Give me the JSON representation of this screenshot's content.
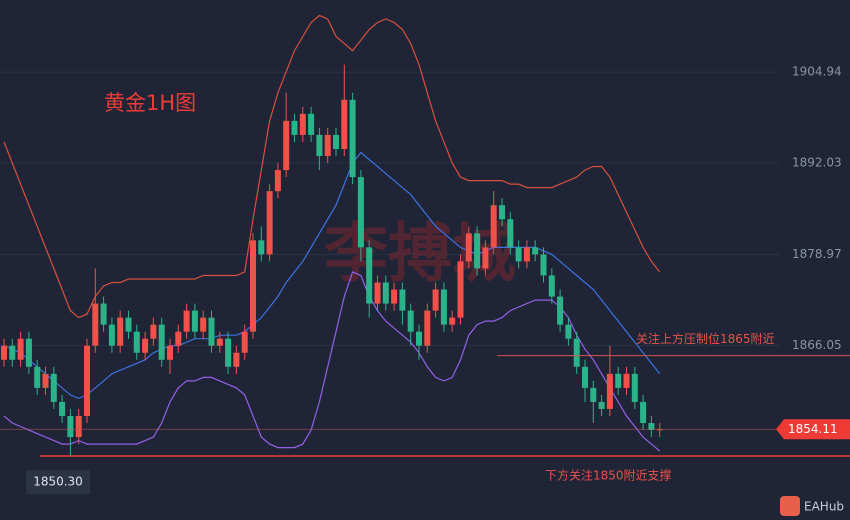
{
  "chart_data": {
    "type": "candlestick",
    "title": "黄金1H图",
    "watermark": "李搏城",
    "brand": "EAHub",
    "up_color": "#f0524a",
    "down_color": "#2bb38a",
    "ylim": [
      1841.2,
      1915.2
    ],
    "yticks": [
      1866.05,
      1878.97,
      1892.03,
      1904.94
    ],
    "grid": true,
    "open": [
      1864,
      1866,
      1864,
      1867,
      1863,
      1860,
      1862,
      1858,
      1856,
      1853,
      1856,
      1866,
      1872,
      1869,
      1866,
      1870,
      1868,
      1865,
      1867,
      1869,
      1864,
      1866,
      1868,
      1871,
      1868,
      1870,
      1866,
      1867,
      1863,
      1865,
      1868,
      1881,
      1879,
      1888,
      1891,
      1898,
      1896,
      1899,
      1896,
      1893,
      1896,
      1894,
      1901,
      1890,
      1880,
      1872,
      1875,
      1872,
      1874,
      1871,
      1868,
      1866,
      1871,
      1874,
      1869,
      1870,
      1878,
      1882,
      1877,
      1880,
      1886,
      1884,
      1880,
      1878,
      1880,
      1879,
      1876,
      1873,
      1869,
      1867,
      1863,
      1860,
      1858,
      1857,
      1862,
      1860,
      1862,
      1858,
      1855,
      1854
    ],
    "high": [
      1867,
      1867,
      1868,
      1868,
      1864,
      1863,
      1863,
      1859,
      1857,
      1857,
      1867,
      1877,
      1873,
      1870,
      1871,
      1871,
      1869,
      1868,
      1870,
      1870,
      1867,
      1869,
      1872,
      1872,
      1871,
      1871,
      1868,
      1868,
      1866,
      1869,
      1882,
      1883,
      1889,
      1892,
      1902,
      1899,
      1900,
      1900,
      1897,
      1897,
      1897,
      1906,
      1902,
      1891,
      1881,
      1876,
      1876,
      1875,
      1875,
      1872,
      1869,
      1872,
      1875,
      1875,
      1871,
      1879,
      1883,
      1883,
      1881,
      1888,
      1887,
      1885,
      1881,
      1881,
      1881,
      1880,
      1877,
      1874,
      1870,
      1868,
      1864,
      1861,
      1859,
      1866,
      1863,
      1863,
      1863,
      1859,
      1856,
      1855
    ],
    "low": [
      1863,
      1863,
      1863,
      1862,
      1859,
      1859,
      1857,
      1855,
      1850.3,
      1852,
      1855,
      1865,
      1868,
      1865,
      1865,
      1867,
      1864,
      1864,
      1866,
      1863,
      1862,
      1865,
      1867,
      1867,
      1867,
      1865,
      1865,
      1862,
      1862,
      1864,
      1867,
      1878,
      1878,
      1887,
      1890,
      1895,
      1895,
      1895,
      1891,
      1892,
      1893,
      1893,
      1889,
      1878,
      1870,
      1871,
      1871,
      1871,
      1869,
      1866,
      1864,
      1865,
      1870,
      1868,
      1868,
      1869,
      1877,
      1876,
      1876,
      1879,
      1883,
      1879,
      1877,
      1877,
      1878,
      1875,
      1872,
      1868,
      1866,
      1862,
      1858,
      1855,
      1856,
      1856,
      1859,
      1859,
      1857,
      1854,
      1853,
      1853
    ],
    "close": [
      1866,
      1864,
      1867,
      1863,
      1860,
      1862,
      1858,
      1856,
      1853,
      1856,
      1866,
      1872,
      1869,
      1866,
      1870,
      1868,
      1865,
      1867,
      1869,
      1864,
      1866,
      1868,
      1871,
      1868,
      1870,
      1866,
      1867,
      1863,
      1865,
      1868,
      1881,
      1879,
      1888,
      1891,
      1898,
      1896,
      1899,
      1896,
      1893,
      1896,
      1894,
      1901,
      1890,
      1880,
      1872,
      1875,
      1872,
      1874,
      1871,
      1868,
      1866,
      1871,
      1874,
      1869,
      1870,
      1878,
      1882,
      1877,
      1880,
      1886,
      1884,
      1880,
      1878,
      1880,
      1879,
      1876,
      1873,
      1869,
      1867,
      1863,
      1860,
      1858,
      1857,
      1862,
      1860,
      1862,
      1858,
      1855,
      1854,
      1854.11
    ],
    "series": [
      {
        "color": "#d8503c",
        "values": [
          1895,
          1892,
          1889,
          1886,
          1883,
          1880,
          1877,
          1874,
          1871,
          1870,
          1870.5,
          1873,
          1874.5,
          1875,
          1875,
          1875.5,
          1875.5,
          1875.5,
          1875.5,
          1875.5,
          1875.5,
          1875.5,
          1875.5,
          1875.5,
          1876,
          1876,
          1876,
          1876,
          1876,
          1876.5,
          1884,
          1891,
          1898,
          1902,
          1905,
          1908,
          1910,
          1912,
          1913,
          1912.5,
          1910,
          1909,
          1908,
          1909.5,
          1911,
          1912,
          1912.5,
          1912,
          1911,
          1909,
          1906,
          1902,
          1898,
          1895,
          1892,
          1890,
          1889.5,
          1889.5,
          1889.5,
          1889.5,
          1889.5,
          1889,
          1889,
          1888.5,
          1888.5,
          1888.5,
          1888.5,
          1889,
          1889.5,
          1890,
          1891,
          1891.5,
          1891.5,
          1890,
          1887.5,
          1885,
          1882.5,
          1880,
          1878,
          1876.5
        ]
      },
      {
        "color": "#3f72e0",
        "values": [
          1866,
          1865.5,
          1865,
          1864,
          1863,
          1862,
          1861,
          1860,
          1859,
          1858.5,
          1859,
          1860,
          1861,
          1862,
          1862.5,
          1863,
          1863.5,
          1864,
          1865,
          1865.5,
          1866,
          1866,
          1866.5,
          1867,
          1867,
          1867,
          1867.5,
          1867.5,
          1867.5,
          1868,
          1869,
          1870,
          1871.5,
          1873,
          1875,
          1876.5,
          1878,
          1880,
          1882,
          1884,
          1886,
          1889,
          1892,
          1893.5,
          1892.5,
          1891.5,
          1890.5,
          1889.5,
          1888.5,
          1887.5,
          1886,
          1884.5,
          1883,
          1882,
          1881,
          1880,
          1879.5,
          1879,
          1879.5,
          1880,
          1880,
          1880,
          1880,
          1880,
          1880,
          1879.5,
          1879,
          1878,
          1877,
          1876,
          1875,
          1874,
          1872.5,
          1871,
          1869.5,
          1868,
          1866.5,
          1865,
          1863.5,
          1862
        ]
      },
      {
        "color": "#9360e6",
        "values": [
          1856,
          1855,
          1854.5,
          1854,
          1853.5,
          1853,
          1852.5,
          1852,
          1852,
          1852.5,
          1852,
          1852,
          1852,
          1852,
          1852,
          1852,
          1852,
          1852.5,
          1853,
          1855,
          1858,
          1860,
          1861,
          1861,
          1861.5,
          1861.5,
          1861,
          1860.5,
          1860,
          1859,
          1856,
          1853,
          1852,
          1851.5,
          1851.5,
          1851.5,
          1852,
          1854,
          1858,
          1863,
          1868,
          1873,
          1876.5,
          1876,
          1873,
          1871,
          1869.5,
          1868.5,
          1867.5,
          1866.5,
          1865,
          1863,
          1861.5,
          1861,
          1861.5,
          1864,
          1867.5,
          1869,
          1869.5,
          1869.5,
          1870,
          1871,
          1871.5,
          1872,
          1872.5,
          1872.5,
          1872.5,
          1871.5,
          1870,
          1867.5,
          1865.5,
          1864,
          1862,
          1860,
          1858,
          1856,
          1854.5,
          1853,
          1852,
          1851
        ]
      }
    ],
    "levels": [
      {
        "value": 1850.3,
        "label": "1850.30",
        "color": "#ef3b36"
      },
      {
        "value": 1864.6,
        "color": "#d9544d"
      }
    ],
    "annotations": [
      {
        "text": "关注上方压制位1865附近",
        "color": "#e8524a"
      },
      {
        "text": "下方关注1850附近支撑",
        "color": "#e8524a"
      }
    ]
  }
}
